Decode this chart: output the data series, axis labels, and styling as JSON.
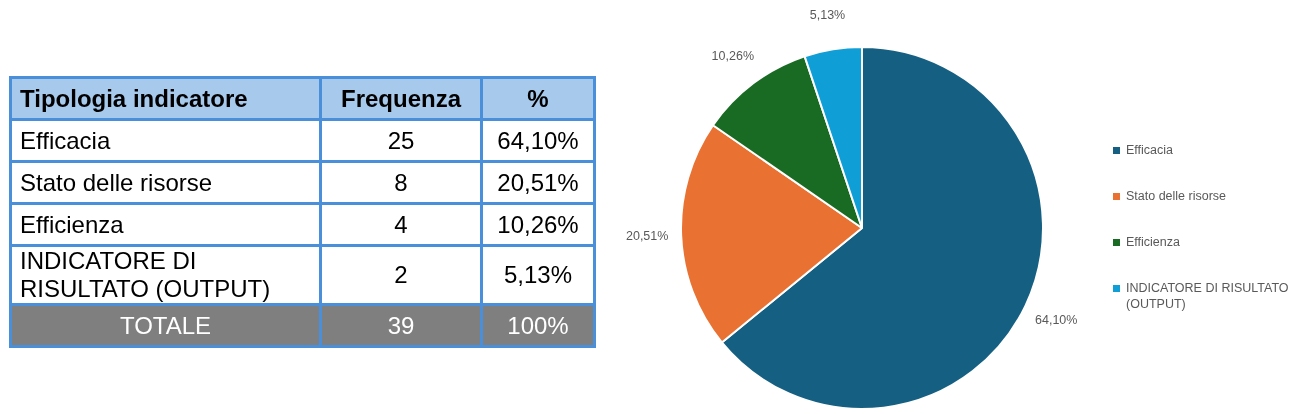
{
  "chart_data": [
    {
      "type": "other",
      "xlabel": "Tipologia indicatore",
      "categories": [
        "Efficacia",
        "Stato delle risorse",
        "Efficienza",
        "INDICATORE DI RISULTATO (OUTPUT)"
      ],
      "series": [
        {
          "name": "Frequenza",
          "values": [
            25,
            8,
            4,
            2
          ]
        },
        {
          "name": "%",
          "values": [
            64.1,
            20.51,
            10.26,
            5.13
          ],
          "value_labels": [
            "64,10%",
            "20,51%",
            "10,26%",
            "5,13%"
          ]
        }
      ],
      "data_labels": true,
      "annotations": [
        "TOTALE"
      ],
      "totals": [
        "39",
        "100%"
      ]
    },
    {
      "type": "pie",
      "categories": [
        "Efficacia",
        "Stato delle risorse",
        "Efficienza",
        "INDICATORE DI RISULTATO (OUTPUT)"
      ],
      "values": [
        64.1,
        20.51,
        10.26,
        5.13
      ],
      "value_labels": [
        "64,10%",
        "20,51%",
        "10,26%",
        "5,13%"
      ],
      "colors": [
        "#156082",
        "#e97132",
        "#196b24",
        "#0f9ed5"
      ],
      "legend": "right"
    }
  ]
}
